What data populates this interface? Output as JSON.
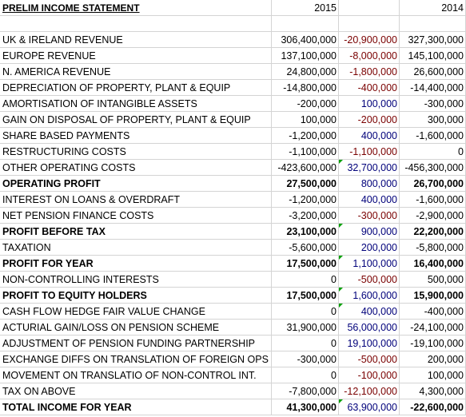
{
  "sheet": {
    "title": "PRELIM INCOME STATEMENT",
    "col_year_a": "2015",
    "col_var": "",
    "col_year_b": "2014"
  },
  "rows": [
    {
      "label": "UK & IRELAND REVENUE",
      "a": "306,400,000",
      "var": "-20,900,000",
      "var_sign": "neg",
      "b": "327,300,000",
      "bold": false
    },
    {
      "label": "EUROPE REVENUE",
      "a": "137,100,000",
      "var": "-8,000,000",
      "var_sign": "neg",
      "b": "145,100,000",
      "bold": false
    },
    {
      "label": "N. AMERICA REVENUE",
      "a": "24,800,000",
      "var": "-1,800,000",
      "var_sign": "neg",
      "b": "26,600,000",
      "bold": false
    },
    {
      "label": "DEPRECIATION OF PROPERTY, PLANT & EQUIP",
      "a": "-14,800,000",
      "var": "-400,000",
      "var_sign": "neg",
      "b": "-14,400,000",
      "bold": false
    },
    {
      "label": "AMORTISATION OF INTANGIBLE ASSETS",
      "a": "-200,000",
      "var": "100,000",
      "var_sign": "pos",
      "b": "-300,000",
      "bold": false
    },
    {
      "label": "GAIN ON DISPOSAL OF PROPERTY, PLANT & EQUIP",
      "a": "100,000",
      "var": "-200,000",
      "var_sign": "neg",
      "b": "300,000",
      "bold": false
    },
    {
      "label": "SHARE BASED PAYMENTS",
      "a": "-1,200,000",
      "var": "400,000",
      "var_sign": "pos",
      "b": "-1,600,000",
      "bold": false
    },
    {
      "label": "RESTRUCTURING COSTS",
      "a": "-1,100,000",
      "var": "-1,100,000",
      "var_sign": "neg",
      "b": "0",
      "bold": false
    },
    {
      "label": "OTHER OPERATING COSTS",
      "a": "-423,600,000",
      "var": "32,700,000",
      "var_sign": "pos",
      "b": "-456,300,000",
      "bold": false,
      "flag": true
    },
    {
      "label": "OPERATING PROFIT",
      "a": "27,500,000",
      "var": "800,000",
      "var_sign": "pos",
      "b": "26,700,000",
      "bold": true
    },
    {
      "label": "INTEREST ON LOANS & OVERDRAFT",
      "a": "-1,200,000",
      "var": "400,000",
      "var_sign": "pos",
      "b": "-1,600,000",
      "bold": false
    },
    {
      "label": "NET PENSION FINANCE COSTS",
      "a": "-3,200,000",
      "var": "-300,000",
      "var_sign": "neg",
      "b": "-2,900,000",
      "bold": false
    },
    {
      "label": "PROFIT BEFORE TAX",
      "a": "23,100,000",
      "var": "900,000",
      "var_sign": "pos",
      "b": "22,200,000",
      "bold": true,
      "flag_a": true
    },
    {
      "label": "TAXATION",
      "a": "-5,600,000",
      "var": "200,000",
      "var_sign": "pos",
      "b": "-5,800,000",
      "bold": false
    },
    {
      "label": "PROFIT FOR YEAR",
      "a": "17,500,000",
      "var": "1,100,000",
      "var_sign": "pos",
      "b": "16,400,000",
      "bold": true,
      "flag": true
    },
    {
      "label": "NON-CONTROLLING INTERESTS",
      "a": "0",
      "var": "-500,000",
      "var_sign": "neg",
      "b": "500,000",
      "bold": false
    },
    {
      "label": "PROFIT TO EQUITY HOLDERS",
      "a": "17,500,000",
      "var": "1,600,000",
      "var_sign": "pos",
      "b": "15,900,000",
      "bold": true,
      "flag": true
    },
    {
      "label": "CASH FLOW HEDGE FAIR VALUE CHANGE",
      "a": "0",
      "var": "400,000",
      "var_sign": "pos",
      "b": "-400,000",
      "bold": false,
      "flag": true
    },
    {
      "label": "ACTURIAL GAIN/LOSS ON PENSION SCHEME",
      "a": "31,900,000",
      "var": "56,000,000",
      "var_sign": "pos",
      "b": "-24,100,000",
      "bold": false
    },
    {
      "label": "ADJUSTMENT OF PENSION FUNDING PARTNERSHIP",
      "a": "0",
      "var": "19,100,000",
      "var_sign": "pos",
      "b": "-19,100,000",
      "bold": false
    },
    {
      "label": "EXCHANGE DIFFS ON TRANSLATION OF FOREIGN OPS",
      "a": "-300,000",
      "var": "-500,000",
      "var_sign": "neg",
      "b": "200,000",
      "bold": false
    },
    {
      "label": "MOVEMENT ON TRANSLATIO OF NON-CONTROL INT.",
      "a": "0",
      "var": "-100,000",
      "var_sign": "neg",
      "b": "100,000",
      "bold": false
    },
    {
      "label": "TAX ON ABOVE",
      "a": "-7,800,000",
      "var": "-12,100,000",
      "var_sign": "neg",
      "b": "4,300,000",
      "bold": false
    },
    {
      "label": "TOTAL INCOME FOR YEAR",
      "a": "41,300,000",
      "var": "63,900,000",
      "var_sign": "pos",
      "b": "-22,600,000",
      "bold": true,
      "flag": true
    }
  ]
}
